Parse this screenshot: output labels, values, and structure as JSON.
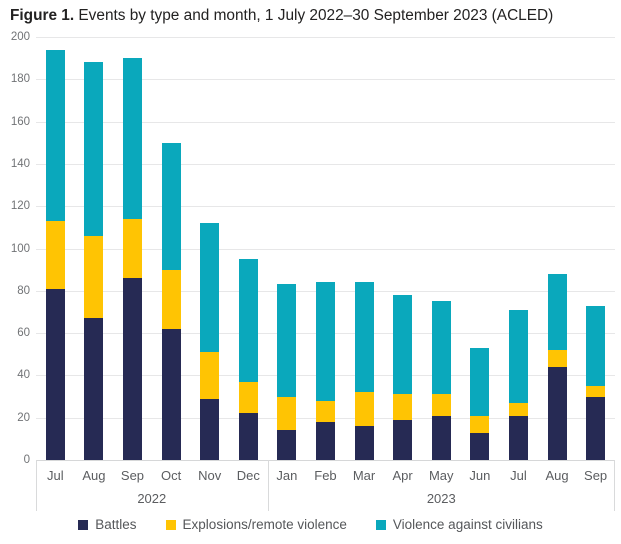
{
  "title": {
    "prefix": "Figure 1.",
    "rest": "Events by type and month, 1 July 2022–30 September 2023 (ACLED)"
  },
  "chart_data": {
    "type": "bar",
    "stacked": true,
    "title": "Figure 1. Events by type and month, 1 July 2022–30 September 2023 (ACLED)",
    "xlabel": "",
    "ylabel": "",
    "ylim": [
      0,
      200
    ],
    "ytick_step": 20,
    "yticks": [
      0,
      20,
      40,
      60,
      80,
      100,
      120,
      140,
      160,
      180,
      200
    ],
    "grid": true,
    "legend_position": "bottom",
    "categories": [
      "Jul",
      "Aug",
      "Sep",
      "Oct",
      "Nov",
      "Dec",
      "Jan",
      "Feb",
      "Mar",
      "Apr",
      "May",
      "Jun",
      "Jul",
      "Aug",
      "Sep"
    ],
    "year_groups": [
      {
        "label": "2022",
        "span": 6
      },
      {
        "label": "2023",
        "span": 9
      }
    ],
    "series": [
      {
        "name": "Battles",
        "color": "#262a54",
        "values": [
          81,
          67,
          86,
          62,
          29,
          22,
          14,
          18,
          16,
          19,
          21,
          13,
          21,
          44,
          30
        ]
      },
      {
        "name": "Explosions/remote violence",
        "color": "#ffc403",
        "values": [
          32,
          39,
          28,
          28,
          22,
          15,
          16,
          10,
          16,
          12,
          10,
          8,
          6,
          8,
          5
        ]
      },
      {
        "name": "Violence against civilians",
        "color": "#0aa8bc",
        "values": [
          81,
          82,
          76,
          60,
          61,
          58,
          53,
          56,
          52,
          47,
          44,
          32,
          44,
          36,
          38
        ]
      }
    ],
    "totals": [
      194,
      188,
      190,
      150,
      112,
      95,
      83,
      84,
      84,
      78,
      75,
      53,
      71,
      88,
      73
    ]
  },
  "colors": {
    "battles": "#262a54",
    "explosions": "#ffc403",
    "violence_against_civilians": "#0aa8bc",
    "gridline": "#e7e7e8",
    "axis_text": "#717376"
  }
}
